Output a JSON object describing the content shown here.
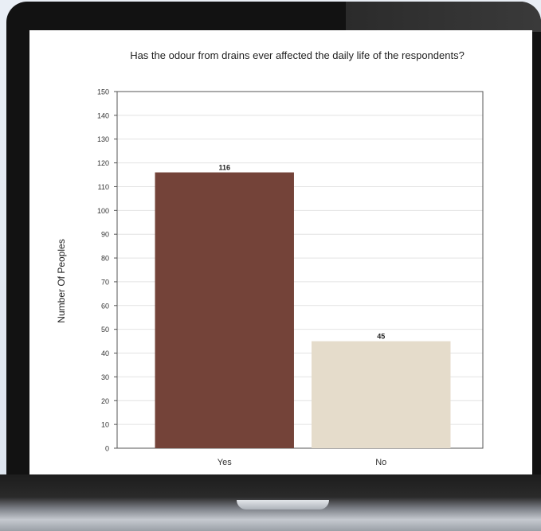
{
  "chart_data": {
    "type": "bar",
    "title": "Has the odour from drains ever affected the daily life of the respondents?",
    "xlabel": "",
    "ylabel": "Number Of Peoples",
    "categories": [
      "Yes",
      "No"
    ],
    "values": [
      116,
      45
    ],
    "data_labels": [
      "116",
      "45"
    ],
    "ylim": [
      0,
      150
    ],
    "yticks": [
      "0",
      "10",
      "20",
      "30",
      "40",
      "50",
      "60",
      "70",
      "80",
      "90",
      "100",
      "110",
      "120",
      "130",
      "140",
      "150"
    ],
    "grid": true,
    "legend": "none",
    "colors": [
      "#744339",
      "#e5dccb"
    ]
  }
}
